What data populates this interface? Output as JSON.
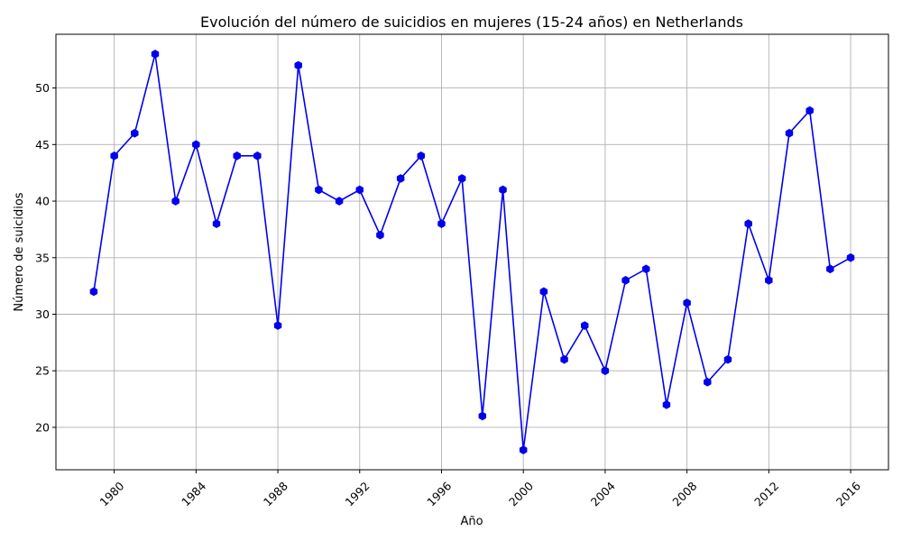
{
  "chart_data": {
    "type": "line",
    "title": "Evolución del número de suicidios en mujeres (15-24 años) en Netherlands",
    "xlabel": "Año",
    "ylabel": "Número de suicidios",
    "xlim": [
      1977.15,
      2017.85
    ],
    "ylim": [
      16.25,
      54.75
    ],
    "grid": true,
    "x_ticks": [
      1980,
      1984,
      1988,
      1992,
      1996,
      2000,
      2004,
      2008,
      2012,
      2016
    ],
    "y_ticks": [
      20,
      25,
      30,
      35,
      40,
      45,
      50
    ],
    "series": [
      {
        "color": "#0000ee",
        "marker": "hexagon",
        "x": [
          1979,
          1980,
          1981,
          1982,
          1983,
          1984,
          1985,
          1986,
          1987,
          1988,
          1989,
          1990,
          1991,
          1992,
          1993,
          1994,
          1995,
          1996,
          1997,
          1998,
          1999,
          2000,
          2001,
          2002,
          2003,
          2004,
          2005,
          2006,
          2007,
          2008,
          2009,
          2010,
          2011,
          2012,
          2013,
          2014,
          2015,
          2016
        ],
        "values": [
          32,
          44,
          46,
          53,
          40,
          45,
          38,
          44,
          44,
          29,
          52,
          41,
          40,
          41,
          37,
          42,
          44,
          38,
          42,
          21,
          41,
          18,
          32,
          26,
          29,
          25,
          33,
          34,
          22,
          31,
          24,
          26,
          38,
          33,
          46,
          48,
          34,
          35
        ]
      }
    ]
  }
}
